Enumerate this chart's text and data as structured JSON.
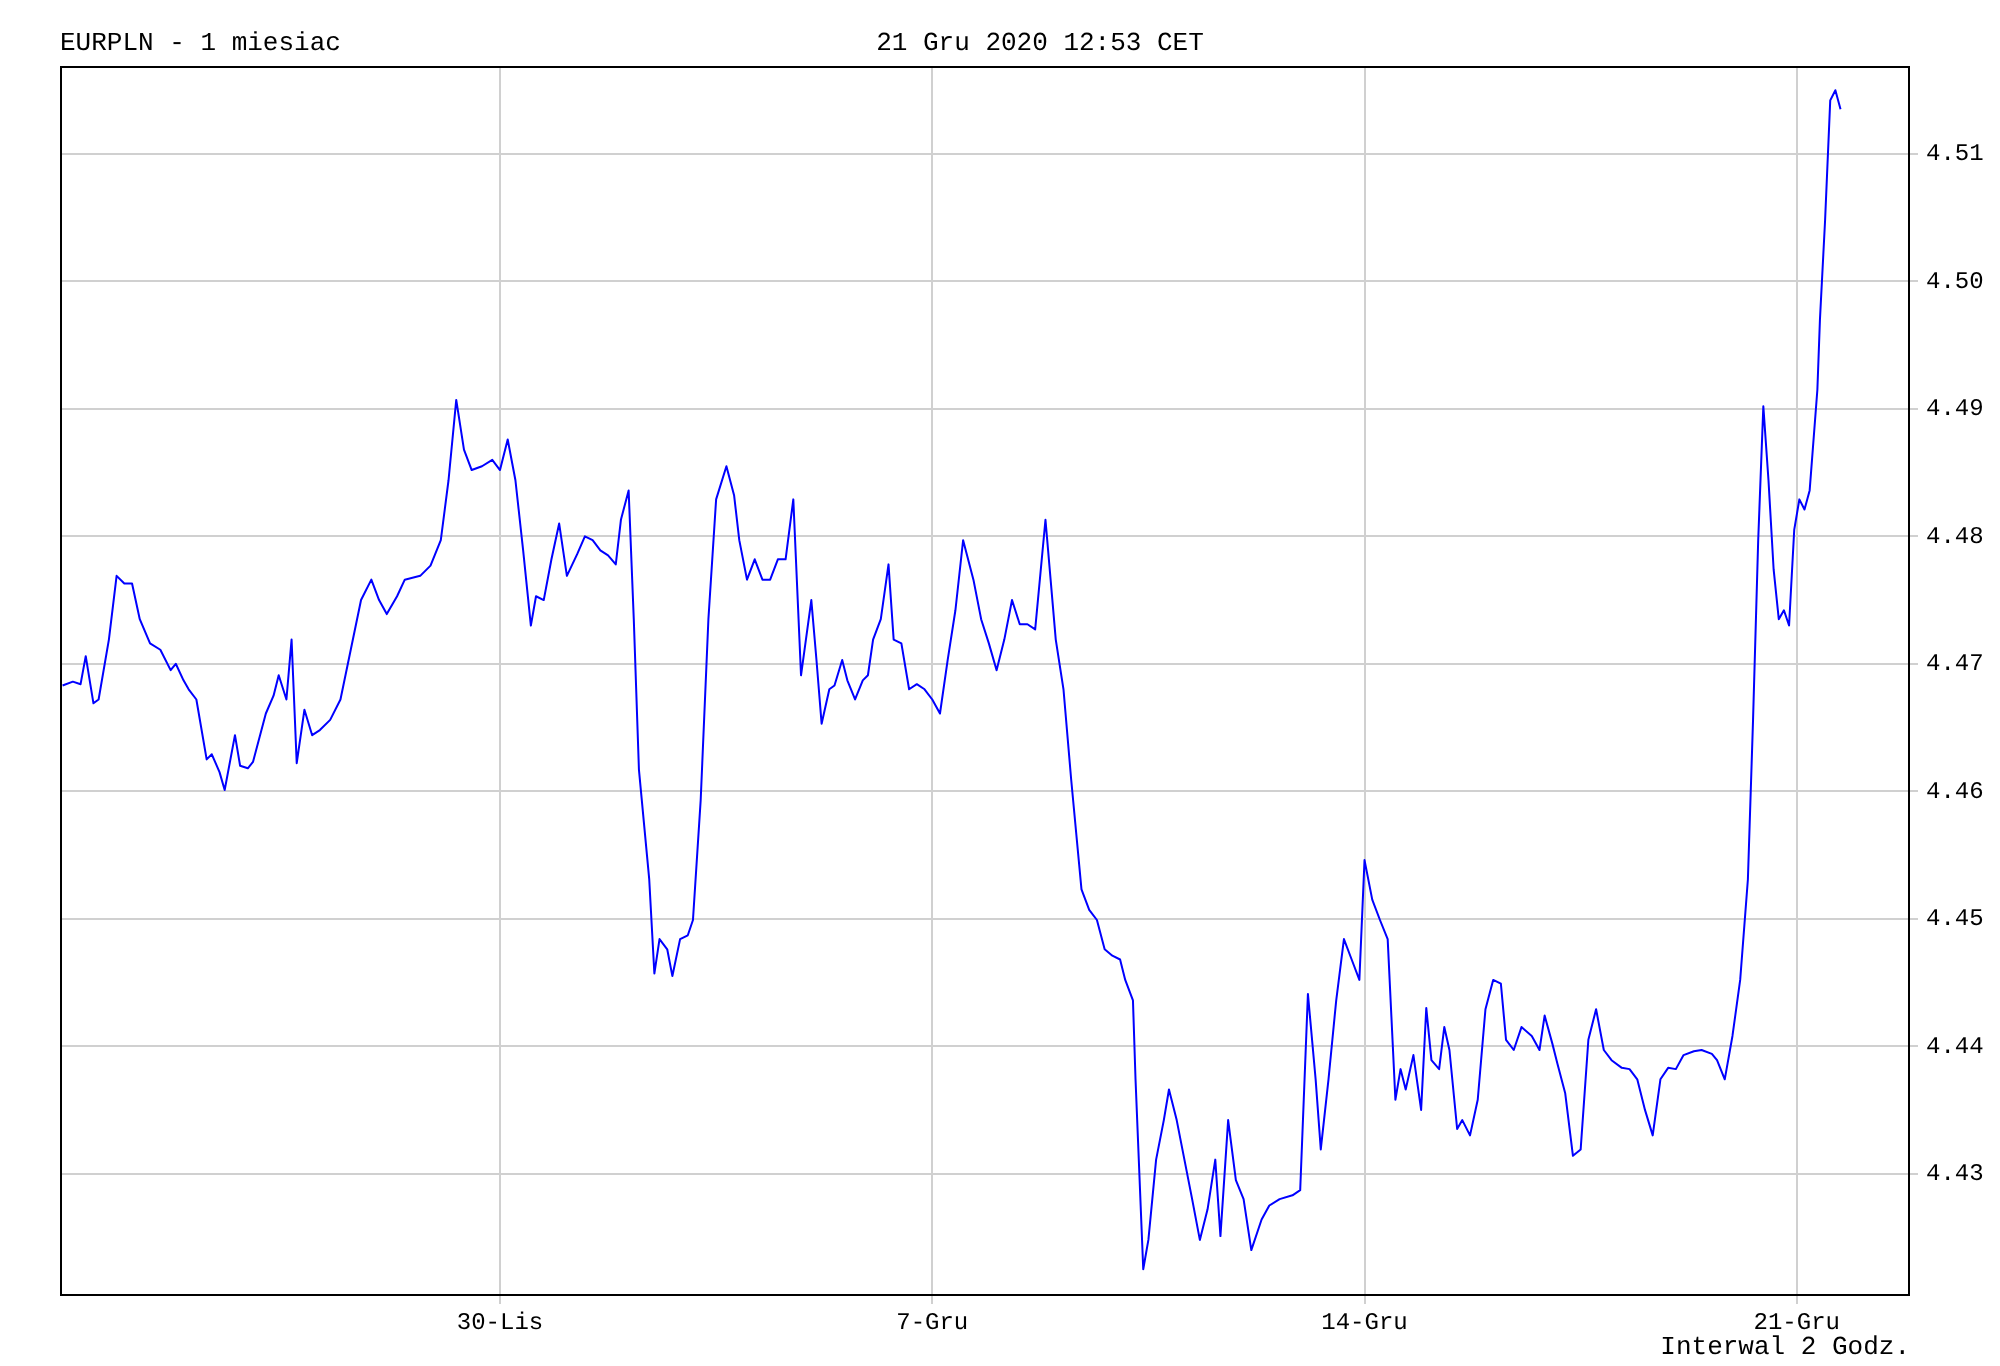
{
  "chart_data": {
    "type": "line",
    "title": "EURPLN - 1 miesiac",
    "subtitle": "21 Gru 2020 12:53 CET",
    "annotations": [
      "Interwal 2 Godz."
    ],
    "x": [
      "2020-11-22T22:00",
      "2020-11-23T02:00",
      "2020-11-23T05:00",
      "2020-11-23T07:00",
      "2020-11-23T10:00",
      "2020-11-23T12:00",
      "2020-11-23T16:00",
      "2020-11-23T19:00",
      "2020-11-23T22:00",
      "2020-11-24T01:00",
      "2020-11-24T04:00",
      "2020-11-24T08:00",
      "2020-11-24T12:00",
      "2020-11-24T16:00",
      "2020-11-24T18:00",
      "2020-11-24T21:00",
      "2020-11-24T23:00",
      "2020-11-25T02:00",
      "2020-11-25T06:00",
      "2020-11-25T08:00",
      "2020-11-25T11:00",
      "2020-11-25T13:00",
      "2020-11-25T17:00",
      "2020-11-25T19:00",
      "2020-11-25T22:00",
      "2020-11-26T00:00",
      "2020-11-26T05:00",
      "2020-11-26T08:00",
      "2020-11-26T10:00",
      "2020-11-26T13:00",
      "2020-11-26T15:00",
      "2020-11-26T17:00",
      "2020-11-26T20:00",
      "2020-11-26T23:00",
      "2020-11-27T02:00",
      "2020-11-27T06:00",
      "2020-11-27T10:00",
      "2020-11-27T14:00",
      "2020-11-27T18:00",
      "2020-11-27T22:00",
      "2020-11-28T01:00",
      "2020-11-28T04:00",
      "2020-11-28T08:00",
      "2020-11-28T11:00",
      "2020-11-28T17:00",
      "2020-11-28T21:00",
      "2020-11-29T01:00",
      "2020-11-29T04:00",
      "2020-11-29T07:00",
      "2020-11-29T10:00",
      "2020-11-29T13:00",
      "2020-11-29T17:00",
      "2020-11-29T21:00",
      "2020-11-30T00:00",
      "2020-11-30T03:00",
      "2020-11-30T06:00",
      "2020-11-30T09:00",
      "2020-11-30T12:00",
      "2020-11-30T14:00",
      "2020-11-30T17:00",
      "2020-11-30T20:00",
      "2020-11-30T23:00",
      "2020-12-01T02:00",
      "2020-12-01T06:00",
      "2020-12-01T09:00",
      "2020-12-01T12:00",
      "2020-12-01T15:00",
      "2020-12-01T18:00",
      "2020-12-01T21:00",
      "2020-12-01T23:00",
      "2020-12-02T02:00",
      "2020-12-02T04:00",
      "2020-12-02T06:00",
      "2020-12-02T10:00",
      "2020-12-02T12:00",
      "2020-12-02T14:00",
      "2020-12-02T17:00",
      "2020-12-02T19:00",
      "2020-12-02T22:00",
      "2020-12-03T01:00",
      "2020-12-03T03:00",
      "2020-12-03T06:00",
      "2020-12-03T09:00",
      "2020-12-03T12:00",
      "2020-12-03T16:00",
      "2020-12-03T19:00",
      "2020-12-03T21:00",
      "2020-12-04T00:00",
      "2020-12-04T03:00",
      "2020-12-04T06:00",
      "2020-12-04T09:00",
      "2020-12-04T12:00",
      "2020-12-04T15:00",
      "2020-12-04T18:00",
      "2020-12-04T21:00",
      "2020-12-05T01:00",
      "2020-12-05T03:00",
      "2020-12-05T05:00",
      "2020-12-05T08:00",
      "2020-12-05T10:00",
      "2020-12-05T13:00",
      "2020-12-05T15:00",
      "2020-12-05T18:00",
      "2020-12-05T21:00",
      "2020-12-05T23:00",
      "2020-12-06T01:00",
      "2020-12-06T04:00",
      "2020-12-06T07:00",
      "2020-12-06T09:00",
      "2020-12-06T12:00",
      "2020-12-06T15:00",
      "2020-12-06T18:00",
      "2020-12-06T21:00",
      "2020-12-07T00:00",
      "2020-12-07T03:00",
      "2020-12-07T06:00",
      "2020-12-07T09:00",
      "2020-12-07T12:00",
      "2020-12-07T16:00",
      "2020-12-07T19:00",
      "2020-12-07T22:00",
      "2020-12-08T01:00",
      "2020-12-08T04:00",
      "2020-12-08T07:00",
      "2020-12-08T10:00",
      "2020-12-08T13:00",
      "2020-12-08T16:00",
      "2020-12-08T20:00",
      "2020-12-08T22:00",
      "2020-12-09T00:00",
      "2020-12-09T03:00",
      "2020-12-09T06:00",
      "2020-12-09T10:00",
      "2020-12-09T13:00",
      "2020-12-09T16:00",
      "2020-12-09T19:00",
      "2020-12-09T22:00",
      "2020-12-10T01:00",
      "2020-12-10T03:00",
      "2020-12-10T06:00",
      "2020-12-10T07:00",
      "2020-12-10T10:00",
      "2020-12-10T12:00",
      "2020-12-10T15:00",
      "2020-12-10T18:00",
      "2020-12-10T20:00",
      "2020-12-10T23:00",
      "2020-12-11T02:00",
      "2020-12-11T05:00",
      "2020-12-11T08:00",
      "2020-12-11T11:00",
      "2020-12-11T14:00",
      "2020-12-11T16:00",
      "2020-12-11T19:00",
      "2020-12-11T22:00",
      "2020-12-12T01:00",
      "2020-12-12T04:00",
      "2020-12-12T08:00",
      "2020-12-12T11:00",
      "2020-12-12T15:00",
      "2020-12-12T20:00",
      "2020-12-12T23:00",
      "2020-12-13T02:00",
      "2020-12-13T05:00",
      "2020-12-13T07:00",
      "2020-12-13T10:00",
      "2020-12-13T13:00",
      "2020-12-13T16:00",
      "2020-12-13T19:00",
      "2020-12-13T22:00",
      "2020-12-14T00:00",
      "2020-12-14T03:00",
      "2020-12-14T06:00",
      "2020-12-14T09:00",
      "2020-12-14T12:00",
      "2020-12-14T14:00",
      "2020-12-14T16:00",
      "2020-12-14T19:00",
      "2020-12-14T22:00",
      "2020-12-15T00:00",
      "2020-12-15T02:00",
      "2020-12-15T05:00",
      "2020-12-15T07:00",
      "2020-12-15T09:00",
      "2020-12-15T12:00",
      "2020-12-15T14:00",
      "2020-12-15T17:00",
      "2020-12-15T20:00",
      "2020-12-15T23:00",
      "2020-12-16T02:00",
      "2020-12-16T05:00",
      "2020-12-16T07:00",
      "2020-12-16T10:00",
      "2020-12-16T13:00",
      "2020-12-16T17:00",
      "2020-12-16T20:00",
      "2020-12-16T22:00",
      "2020-12-17T01:00",
      "2020-12-17T03:00",
      "2020-12-17T06:00",
      "2020-12-17T09:00",
      "2020-12-17T12:00",
      "2020-12-17T15:00",
      "2020-12-17T18:00",
      "2020-12-17T21:00",
      "2020-12-18T00:00",
      "2020-12-18T04:00",
      "2020-12-18T07:00",
      "2020-12-18T10:00",
      "2020-12-18T13:00",
      "2020-12-18T16:00",
      "2020-12-18T19:00",
      "2020-12-18T22:00",
      "2020-12-19T01:00",
      "2020-12-19T04:00",
      "2020-12-19T08:00",
      "2020-12-19T11:00",
      "2020-12-19T15:00",
      "2020-12-19T17:00",
      "2020-12-19T20:00",
      "2020-12-19T23:00",
      "2020-12-20T02:00",
      "2020-12-20T05:00",
      "2020-12-20T07:00",
      "2020-12-20T09:00",
      "2020-12-20T11:00",
      "2020-12-20T13:00",
      "2020-12-20T15:00",
      "2020-12-20T17:00",
      "2020-12-20T19:00",
      "2020-12-20T21:00",
      "2020-12-20T23:00",
      "2020-12-21T01:00",
      "2020-12-21T03:00",
      "2020-12-21T05:00",
      "2020-12-21T08:00",
      "2020-12-21T09:00",
      "2020-12-21T11:00",
      "2020-12-21T13:00",
      "2020-12-21T15:00",
      "2020-12-21T17:00"
    ],
    "series": [
      {
        "color": "#0000ff",
        "values": [
          4.4683,
          4.4686,
          4.4684,
          4.4706,
          4.4669,
          4.4672,
          4.4719,
          4.4769,
          4.4763,
          4.4763,
          4.4735,
          4.4716,
          4.4711,
          4.4695,
          4.47,
          4.4687,
          4.468,
          4.4672,
          4.4625,
          4.4629,
          4.4615,
          4.4601,
          4.4644,
          4.462,
          4.4618,
          4.4623,
          4.4661,
          4.4675,
          4.4691,
          4.4672,
          4.4719,
          4.4622,
          4.4664,
          4.4644,
          4.4648,
          4.4656,
          4.4672,
          4.4711,
          4.475,
          4.4766,
          4.475,
          4.4739,
          4.4753,
          4.4766,
          4.4769,
          4.4777,
          4.4797,
          4.4844,
          4.4907,
          4.4868,
          4.4852,
          4.4855,
          4.486,
          4.4852,
          4.4876,
          4.4844,
          4.4789,
          4.473,
          4.4753,
          4.475,
          4.4782,
          4.481,
          4.4769,
          4.4786,
          4.48,
          4.4797,
          4.4789,
          4.4785,
          4.4778,
          4.4813,
          4.4836,
          4.4735,
          4.4617,
          4.4531,
          4.4457,
          4.4484,
          4.4476,
          4.4455,
          4.4484,
          4.4487,
          4.4499,
          4.4593,
          4.4735,
          4.4829,
          4.4855,
          4.4832,
          4.4797,
          4.4766,
          4.4782,
          4.4766,
          4.4766,
          4.4782,
          4.4782,
          4.4829,
          4.4691,
          4.475,
          4.4703,
          4.4653,
          4.468,
          4.4683,
          4.4703,
          4.4687,
          4.4672,
          4.4687,
          4.4691,
          4.4719,
          4.4735,
          4.4778,
          4.4719,
          4.4716,
          4.468,
          4.4684,
          4.468,
          4.4672,
          4.4661,
          4.4703,
          4.4742,
          4.4797,
          4.4766,
          4.4735,
          4.4716,
          4.4695,
          4.4719,
          4.475,
          4.4731,
          4.4731,
          4.4727,
          4.4813,
          4.4766,
          4.4719,
          4.468,
          4.4609,
          4.4523,
          4.4507,
          4.4499,
          4.4476,
          4.4471,
          4.4468,
          4.4452,
          4.4436,
          4.4374,
          4.4225,
          4.4248,
          4.4311,
          4.4342,
          4.4366,
          4.4342,
          4.4311,
          4.428,
          4.4248,
          4.4272,
          4.4311,
          4.4251,
          4.4342,
          4.4295,
          4.428,
          4.424,
          4.4264,
          4.4275,
          4.428,
          4.4283,
          4.4287,
          4.4441,
          4.4374,
          4.4319,
          4.4374,
          4.4436,
          4.4484,
          4.4468,
          4.4452,
          4.4546,
          4.4515,
          4.4499,
          4.4484,
          4.4358,
          4.4382,
          4.4366,
          4.4393,
          4.435,
          4.443,
          4.4389,
          4.4382,
          4.4415,
          4.4397,
          4.4335,
          4.4342,
          4.433,
          4.4358,
          4.4429,
          4.4452,
          4.4449,
          4.4405,
          4.4397,
          4.4415,
          4.4408,
          4.4397,
          4.4424,
          4.4402,
          4.4386,
          4.4363,
          4.4314,
          4.4319,
          4.4405,
          4.4429,
          4.4397,
          4.4389,
          4.4383,
          4.4382,
          4.4374,
          4.435,
          4.433,
          4.4374,
          4.4383,
          4.4382,
          4.4393,
          4.4396,
          4.4397,
          4.4394,
          4.4389,
          4.4374,
          4.4408,
          4.4452,
          4.4531,
          4.4656,
          4.4797,
          4.4902,
          4.4844,
          4.4774,
          4.4735,
          4.4742,
          4.473,
          4.4805,
          4.4829,
          4.4821,
          4.4836,
          4.4915,
          4.497,
          4.5048,
          4.5142,
          4.515,
          4.5135
        ]
      }
    ],
    "xlim": [
      "2020-11-22T21:00",
      "2020-12-22T20:00"
    ],
    "xticks": [
      {
        "value": "2020-11-30",
        "label": "30-Lis"
      },
      {
        "value": "2020-12-07",
        "label": "7-Gru"
      },
      {
        "value": "2020-12-14",
        "label": "14-Gru"
      },
      {
        "value": "2020-12-21",
        "label": "21-Gru"
      }
    ],
    "ylim": [
      4.4204,
      4.5169
    ],
    "yticks": [
      4.43,
      4.44,
      4.45,
      4.46,
      4.47,
      4.48,
      4.49,
      {
        "value": 4.5,
        "label": "4.50"
      },
      4.51
    ],
    "grid": true,
    "legend": false,
    "marker": "none",
    "line_style": "solid"
  }
}
